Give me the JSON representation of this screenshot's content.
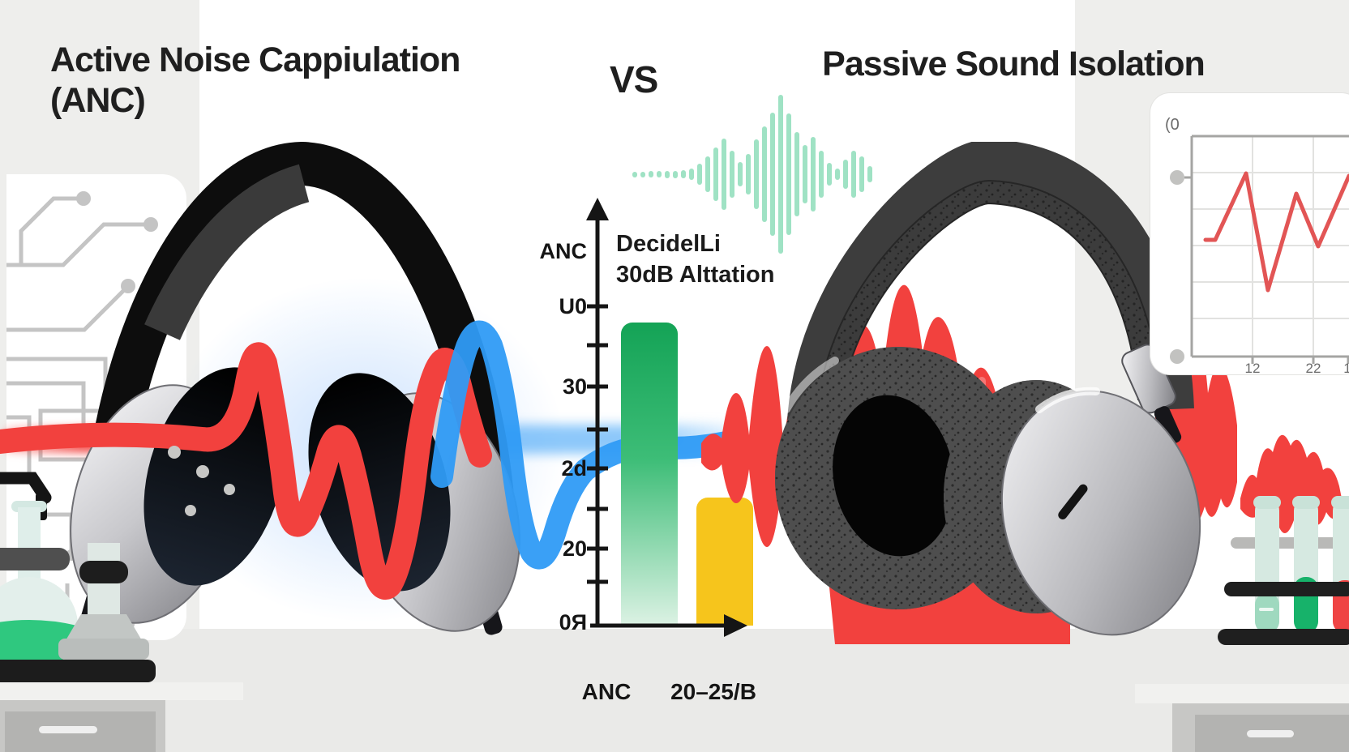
{
  "titles": {
    "left": "Active Noise Cappiulation (ANC)",
    "vs": "VS",
    "right": "Passive Sound Isolation"
  },
  "bar_chart": {
    "annotation_line1": "DecidelLi",
    "annotation_line2": "30dB Alttation",
    "y_axis_labels": [
      "ANC",
      "U0",
      "30",
      "2d",
      "20",
      "0Я"
    ],
    "x_axis_labels": [
      "ANC",
      "20–25/B"
    ]
  },
  "mini_chart": {
    "corner_label": "(0",
    "x_labels": [
      "12",
      "22",
      "1"
    ]
  },
  "chart_data": [
    {
      "type": "bar",
      "categories": [
        "ANC",
        "20–25/B"
      ],
      "values": [
        38,
        16
      ],
      "title": "DecidelLi 30dB Alttation",
      "ylabel": "",
      "xlabel": "",
      "y_tick_labels_bottom_to_top": [
        "0Я",
        "20",
        "2d",
        "30",
        "U0"
      ],
      "ylim": [
        0,
        45
      ],
      "bar_colors": [
        "green-gradient",
        "#f6c51c"
      ]
    },
    {
      "type": "line",
      "x_tick_labels": [
        "12",
        "22",
        "1"
      ],
      "y_relative": [
        0.53,
        0.53,
        0.83,
        0.3,
        0.74,
        0.5,
        0.82
      ],
      "line_color": "#e25555",
      "grid": "on"
    }
  ],
  "colors": {
    "background": "#eeeeec",
    "panel_white": "#ffffff",
    "title_text": "#1f1f1f",
    "teal_wave": "#9fe2c4",
    "bar_green_top": "#14a356",
    "bar_green_bottom": "#dcf2e4",
    "bar_yellow": "#f6c51c",
    "wave_red": "#f2413e",
    "wave_blue": "#2f9bf6",
    "axis_black": "#151515",
    "circuit_gray": "#c4c4c4",
    "lab_green": "#2fc87f"
  },
  "decor": {
    "waveform_heights": [
      7,
      7,
      8,
      8,
      9,
      9,
      10,
      14,
      26,
      44,
      66,
      88,
      58,
      30,
      50,
      86,
      118,
      152,
      196,
      150,
      104,
      72,
      92,
      58,
      28,
      14,
      36,
      58,
      44,
      20
    ]
  }
}
